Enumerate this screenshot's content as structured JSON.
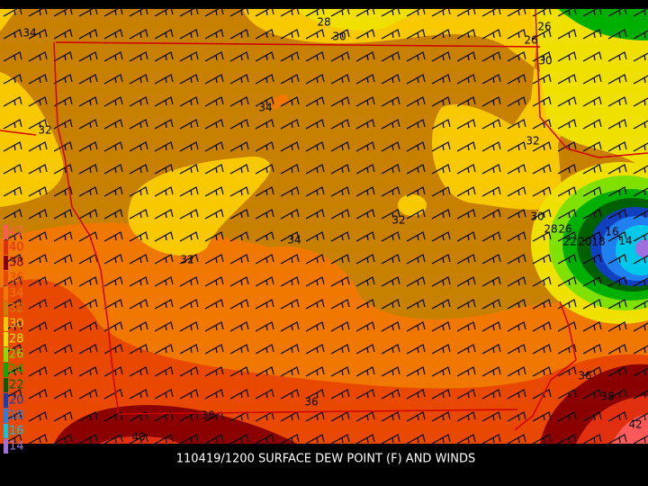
{
  "caption": "110419/1200 SURFACE DEW POINT (F) AND WINDS",
  "legend": [
    {
      "label": "42",
      "color": "#ff5a5a"
    },
    {
      "label": "40",
      "color": "#e03010"
    },
    {
      "label": "38",
      "color": "#8b0000"
    },
    {
      "label": "36",
      "color": "#e84800"
    },
    {
      "label": "34",
      "color": "#f07800"
    },
    {
      "label": "32",
      "color": "#c88000"
    },
    {
      "label": "30",
      "color": "#f8c800"
    },
    {
      "label": "28",
      "color": "#f0e000"
    },
    {
      "label": "26",
      "color": "#80e000"
    },
    {
      "label": "24",
      "color": "#00b000"
    },
    {
      "label": "22",
      "color": "#006000"
    },
    {
      "label": "20",
      "color": "#1040c0"
    },
    {
      "label": "18",
      "color": "#2080f0"
    },
    {
      "label": "16",
      "color": "#00c8e8"
    },
    {
      "label": "14",
      "color": "#a070e0"
    }
  ],
  "contour_labels": [
    "34",
    "28",
    "30",
    "26",
    "26",
    "30",
    "34",
    "32",
    "32",
    "32",
    "30",
    "34",
    "32",
    "28",
    "26",
    "22",
    "20",
    "18",
    "16",
    "14",
    "36",
    "38",
    "42",
    "36",
    "38",
    "40"
  ]
}
